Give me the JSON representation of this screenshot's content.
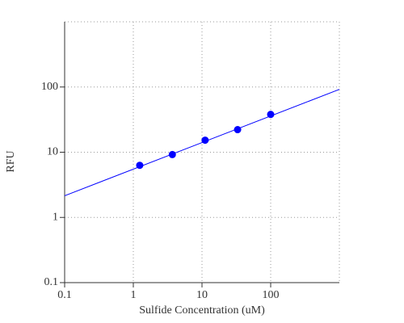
{
  "chart_data": {
    "type": "scatter",
    "x_label": "Sulfide Concentration (uM)",
    "y_label": "RFU",
    "xlim": [
      0.1,
      1000
    ],
    "ylim": [
      0.1,
      1000
    ],
    "xticks": [
      0.1,
      1,
      10,
      100
    ],
    "yticks": [
      0.1,
      1,
      10,
      100
    ],
    "xscale": "log",
    "yscale": "log",
    "grid": true,
    "series": [
      {
        "type": "scatter",
        "color": "#0000ff",
        "x": [
          1.24,
          3.7,
          11.1,
          33,
          100
        ],
        "values": [
          6.3,
          9.2,
          15.3,
          22.2,
          38
        ]
      },
      {
        "type": "line",
        "color": "#0000ff",
        "x": [
          0.1,
          1000
        ],
        "values": [
          2.15,
          92
        ]
      }
    ]
  }
}
